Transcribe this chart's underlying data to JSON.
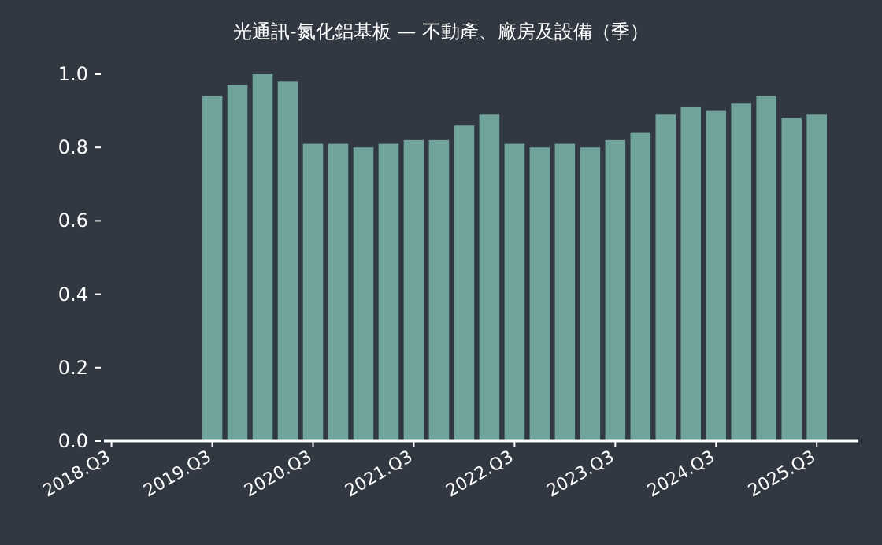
{
  "chart_data": {
    "type": "bar",
    "title": "光通訊-氮化鋁基板 — 不動產、廠房及設備（季）",
    "color": "#6fa39c",
    "categories": [
      "2018.Q3",
      null,
      null,
      null,
      "2019.Q3",
      null,
      null,
      null,
      "2020.Q3",
      null,
      null,
      null,
      "2021.Q3",
      null,
      null,
      null,
      "2022.Q3",
      null,
      null,
      null,
      "2023.Q3",
      null,
      null,
      null,
      "2024.Q3",
      null,
      null,
      null,
      "2025.Q3"
    ],
    "values": [
      null,
      null,
      null,
      null,
      0.94,
      0.97,
      1.0,
      0.98,
      0.81,
      0.81,
      0.8,
      0.81,
      0.82,
      0.82,
      0.86,
      0.89,
      0.81,
      0.8,
      0.81,
      0.8,
      0.82,
      0.84,
      0.89,
      0.91,
      0.9,
      0.92,
      0.94,
      0.88,
      0.89
    ],
    "ylim": [
      0,
      1
    ],
    "yticks": [
      {
        "value": 0,
        "label": "0.0"
      },
      {
        "value": 0.2,
        "label": "0.2"
      },
      {
        "value": 0.4,
        "label": "0.4"
      },
      {
        "value": 0.6,
        "label": "0.6"
      },
      {
        "value": 0.8,
        "label": "0.8"
      },
      {
        "value": 1,
        "label": "1.0"
      }
    ]
  }
}
